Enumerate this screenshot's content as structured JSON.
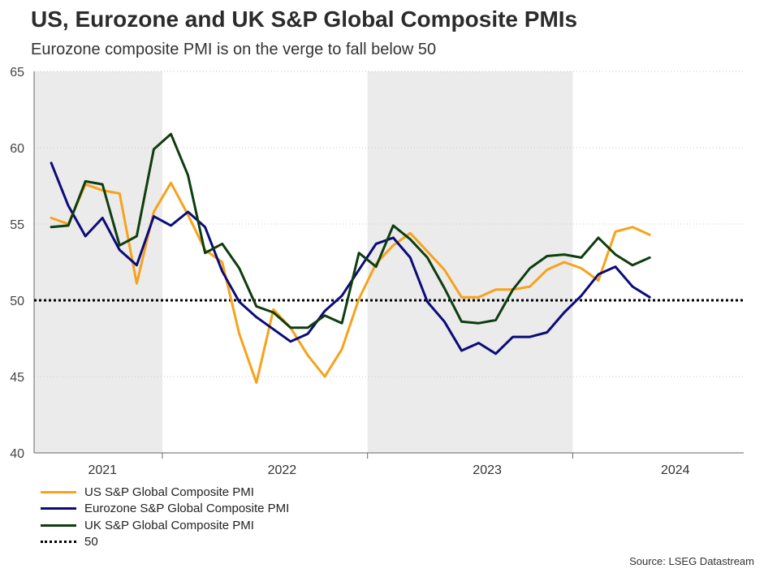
{
  "header": {
    "title": "US, Eurozone and UK S&P Global Composite PMIs",
    "subtitle": "Eurozone composite PMI is on the verge to fall below 50"
  },
  "source": "Source: LSEG Datastream",
  "colors": {
    "us": "#F7A21B",
    "eurozone": "#0B0B7A",
    "uk": "#0E3D0E",
    "threshold": "#000000",
    "shade": "#EBEBEB"
  },
  "chart_data": {
    "type": "line",
    "title": "US, Eurozone and UK S&P Global Composite PMIs",
    "subtitle": "Eurozone composite PMI is on the verge to fall below 50",
    "xlabel": "",
    "ylabel": "",
    "ylim": [
      40,
      65
    ],
    "yticks": [
      40,
      45,
      50,
      55,
      60,
      65
    ],
    "grid": true,
    "legend_position": "bottom-left",
    "x_start": "2021-05",
    "year_labels": [
      {
        "label": "2021",
        "index": 3
      },
      {
        "label": "2022",
        "index": 13.5
      },
      {
        "label": "2023",
        "index": 25.5
      },
      {
        "label": "2024",
        "index": 36.5
      }
    ],
    "year_ticks": [
      6.5,
      18.5,
      30.5
    ],
    "shaded_ranges": [
      [
        -1,
        6.5
      ],
      [
        18.5,
        30.5
      ]
    ],
    "x_range": [
      -1,
      40.5
    ],
    "series": [
      {
        "name": "US S&P Global Composite PMI",
        "color": "#F7A21B",
        "values": [
          55.4,
          55.0,
          57.6,
          57.2,
          57.0,
          51.1,
          55.8,
          57.7,
          55.6,
          53.3,
          52.5,
          47.8,
          44.6,
          49.4,
          48.2,
          46.4,
          45.0,
          46.8,
          50.1,
          52.4,
          53.6,
          54.4,
          53.2,
          52.0,
          50.2,
          50.2,
          50.7,
          50.7,
          50.9,
          52.0,
          52.5,
          52.1,
          51.3,
          54.5,
          54.8,
          54.3
        ]
      },
      {
        "name": "Eurozone S&P Global Composite PMI",
        "color": "#0B0B7A",
        "values": [
          59.0,
          56.2,
          54.2,
          55.4,
          53.3,
          52.3,
          55.5,
          54.9,
          55.8,
          54.8,
          51.9,
          49.9,
          48.9,
          48.1,
          47.3,
          47.8,
          49.3,
          50.3,
          52.0,
          53.7,
          54.1,
          52.8,
          49.9,
          48.6,
          46.7,
          47.2,
          46.5,
          47.6,
          47.6,
          47.9,
          49.2,
          50.3,
          51.7,
          52.2,
          50.9,
          50.2
        ]
      },
      {
        "name": "UK S&P Global Composite PMI",
        "color": "#0E3D0E",
        "values": [
          54.8,
          54.9,
          57.8,
          57.6,
          53.6,
          54.2,
          59.9,
          60.9,
          58.2,
          53.1,
          53.7,
          52.1,
          49.6,
          49.2,
          48.2,
          48.2,
          49.0,
          48.5,
          53.1,
          52.2,
          54.9,
          54.0,
          52.8,
          50.8,
          48.6,
          48.5,
          48.7,
          50.7,
          52.1,
          52.9,
          53.0,
          52.8,
          54.1,
          53.0,
          52.3,
          52.8
        ]
      },
      {
        "name": "50",
        "color": "#000000",
        "style": "dotted",
        "values": [
          50,
          50
        ]
      }
    ]
  }
}
